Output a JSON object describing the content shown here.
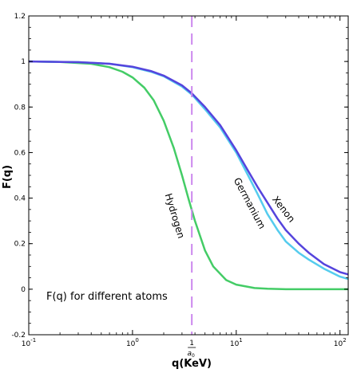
{
  "chart_data": {
    "type": "line",
    "title": "",
    "xlabel": "q(KeV)",
    "ylabel": "F(q)",
    "xscale": "log",
    "xlim": [
      0.1,
      120
    ],
    "ylim": [
      -0.2,
      1.2
    ],
    "grid": false,
    "x_tick_labels": [
      {
        "x": 0.1,
        "base": "10",
        "exp": "-1"
      },
      {
        "x": 1,
        "base": "10",
        "exp": "0"
      },
      {
        "x": 10,
        "base": "10",
        "exp": "1"
      },
      {
        "x": 100,
        "base": "10",
        "exp": "2"
      }
    ],
    "y_ticks": [
      -0.2,
      0,
      0.2,
      0.4,
      0.6,
      0.8,
      1,
      1.2
    ],
    "y_tick_labels": [
      "-0.2",
      "0",
      "0.2",
      "0.4",
      "0.6",
      "0.8",
      "1",
      "1.2"
    ],
    "annotation": "F(q) for different atoms",
    "vline": {
      "x": 3.73,
      "label_num": "1",
      "label_den": "a",
      "label_den_sub": "0",
      "color": "#cc88ee"
    },
    "series": [
      {
        "name": "Hydrogen",
        "color": "#44cc66",
        "x": [
          0.1,
          0.2,
          0.4,
          0.6,
          0.8,
          1.0,
          1.3,
          1.6,
          2.0,
          2.5,
          3.0,
          3.5,
          4.0,
          5.0,
          6.0,
          8.0,
          10,
          15,
          20,
          30,
          50,
          120
        ],
        "y": [
          1.0,
          0.998,
          0.99,
          0.975,
          0.955,
          0.93,
          0.885,
          0.83,
          0.74,
          0.62,
          0.5,
          0.39,
          0.3,
          0.17,
          0.1,
          0.04,
          0.02,
          0.005,
          0.002,
          0.0,
          0.0,
          0.0
        ]
      },
      {
        "name": "Germanium",
        "color": "#55ccee",
        "x": [
          0.1,
          0.3,
          0.6,
          1.0,
          1.5,
          2.0,
          3.0,
          3.73,
          5.0,
          7.0,
          10,
          13,
          16,
          20,
          25,
          30,
          40,
          50,
          70,
          100,
          120
        ],
        "y": [
          1.0,
          0.997,
          0.99,
          0.975,
          0.955,
          0.935,
          0.89,
          0.855,
          0.79,
          0.71,
          0.6,
          0.5,
          0.42,
          0.33,
          0.26,
          0.21,
          0.16,
          0.13,
          0.09,
          0.055,
          0.045
        ]
      },
      {
        "name": "Xenon",
        "color": "#5544dd",
        "x": [
          0.1,
          0.3,
          0.6,
          1.0,
          1.5,
          2.0,
          3.0,
          3.73,
          5.0,
          7.0,
          10,
          13,
          16,
          20,
          25,
          30,
          40,
          50,
          70,
          100,
          120
        ],
        "y": [
          1.0,
          0.997,
          0.99,
          0.977,
          0.958,
          0.938,
          0.895,
          0.86,
          0.8,
          0.72,
          0.61,
          0.52,
          0.45,
          0.38,
          0.31,
          0.26,
          0.2,
          0.16,
          0.11,
          0.075,
          0.065
        ]
      }
    ]
  }
}
